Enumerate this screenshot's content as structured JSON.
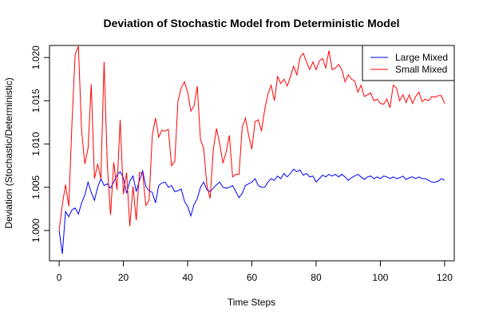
{
  "chart_data": {
    "type": "line",
    "title": "Deviation of Stochastic Model from Deterministic Model",
    "xlabel": "Time Steps",
    "ylabel": "Deviation (Stochastic/Deterministic)",
    "xlim": [
      -3,
      123
    ],
    "ylim": [
      0.9965,
      1.0214
    ],
    "x_ticks": [
      0,
      20,
      40,
      60,
      80,
      100,
      120
    ],
    "x_tick_labels": [
      "0",
      "20",
      "40",
      "60",
      "80",
      "100",
      "120"
    ],
    "y_ticks": [
      1.0,
      1.005,
      1.01,
      1.015,
      1.02
    ],
    "y_tick_labels": [
      "1.000",
      "1.005",
      "1.010",
      "1.015",
      "1.020"
    ],
    "grid": false,
    "legend_position": "top-right",
    "series": [
      {
        "name": "Large Mixed",
        "color": "#0000ff",
        "x": [
          0,
          1,
          2,
          3,
          4,
          5,
          6,
          7,
          8,
          9,
          10,
          11,
          12,
          13,
          14,
          15,
          16,
          17,
          18,
          19,
          20,
          21,
          22,
          23,
          24,
          25,
          26,
          27,
          28,
          29,
          30,
          31,
          32,
          33,
          34,
          35,
          36,
          37,
          38,
          39,
          40,
          41,
          42,
          43,
          44,
          45,
          46,
          47,
          48,
          49,
          50,
          51,
          52,
          53,
          54,
          55,
          56,
          57,
          58,
          59,
          60,
          61,
          62,
          63,
          64,
          65,
          66,
          67,
          68,
          69,
          70,
          71,
          72,
          73,
          74,
          75,
          76,
          77,
          78,
          79,
          80,
          81,
          82,
          83,
          84,
          85,
          86,
          87,
          88,
          89,
          90,
          91,
          92,
          93,
          94,
          95,
          96,
          97,
          98,
          99,
          100,
          101,
          102,
          103,
          104,
          105,
          106,
          107,
          108,
          109,
          110,
          111,
          112,
          113,
          114,
          115,
          116,
          117,
          118,
          119,
          120
        ],
        "values": [
          1.0,
          0.9973,
          1.0022,
          1.0016,
          1.0024,
          1.0026,
          1.0019,
          1.0032,
          1.0041,
          1.0056,
          1.0044,
          1.0035,
          1.005,
          1.006,
          1.0052,
          1.0054,
          1.0049,
          1.0056,
          1.0064,
          1.0068,
          1.0061,
          1.0043,
          1.0057,
          1.0063,
          1.0045,
          1.0058,
          1.0069,
          1.0051,
          1.0046,
          1.0044,
          1.0032,
          1.0052,
          1.0055,
          1.0056,
          1.005,
          1.0052,
          1.0045,
          1.0046,
          1.0048,
          1.0034,
          1.0028,
          1.0017,
          1.003,
          1.0037,
          1.005,
          1.0056,
          1.0047,
          1.0045,
          1.0049,
          1.0053,
          1.0056,
          1.005,
          1.0049,
          1.005,
          1.0052,
          1.0045,
          1.0038,
          1.0043,
          1.0052,
          1.0054,
          1.0056,
          1.006,
          1.0052,
          1.005,
          1.005,
          1.0056,
          1.006,
          1.0058,
          1.0063,
          1.006,
          1.0066,
          1.0062,
          1.0066,
          1.0071,
          1.0068,
          1.007,
          1.0064,
          1.0066,
          1.0062,
          1.0063,
          1.0056,
          1.006,
          1.0064,
          1.0062,
          1.0065,
          1.0063,
          1.0065,
          1.0062,
          1.0065,
          1.0062,
          1.0058,
          1.0061,
          1.0063,
          1.0065,
          1.0062,
          1.0059,
          1.0062,
          1.0063,
          1.006,
          1.0062,
          1.006,
          1.0063,
          1.0062,
          1.006,
          1.0062,
          1.006,
          1.0061,
          1.0063,
          1.0059,
          1.0061,
          1.0062,
          1.006,
          1.0062,
          1.006,
          1.006,
          1.0058,
          1.0056,
          1.0056,
          1.0057,
          1.006,
          1.0058
        ]
      },
      {
        "name": "Small Mixed",
        "color": "#ff0000",
        "x": [
          0,
          1,
          2,
          3,
          4,
          5,
          6,
          7,
          8,
          9,
          10,
          11,
          12,
          13,
          14,
          15,
          16,
          17,
          18,
          19,
          20,
          21,
          22,
          23,
          24,
          25,
          26,
          27,
          28,
          29,
          30,
          31,
          32,
          33,
          34,
          35,
          36,
          37,
          38,
          39,
          40,
          41,
          42,
          43,
          44,
          45,
          46,
          47,
          48,
          49,
          50,
          51,
          52,
          53,
          54,
          55,
          56,
          57,
          58,
          59,
          60,
          61,
          62,
          63,
          64,
          65,
          66,
          67,
          68,
          69,
          70,
          71,
          72,
          73,
          74,
          75,
          76,
          77,
          78,
          79,
          80,
          81,
          82,
          83,
          84,
          85,
          86,
          87,
          88,
          89,
          90,
          91,
          92,
          93,
          94,
          95,
          96,
          97,
          98,
          99,
          100,
          101,
          102,
          103,
          104,
          105,
          106,
          107,
          108,
          109,
          110,
          111,
          112,
          113,
          114,
          115,
          116,
          117,
          118,
          119,
          120
        ],
        "values": [
          1.0,
          1.003,
          1.0053,
          1.0028,
          1.0125,
          1.0204,
          1.0213,
          1.0115,
          1.0077,
          1.0095,
          1.0169,
          1.006,
          1.0077,
          1.006,
          1.0195,
          1.0076,
          1.0018,
          1.0079,
          1.0047,
          1.0128,
          1.0042,
          1.0067,
          1.0005,
          1.0051,
          1.0012,
          1.0067,
          1.0066,
          1.0029,
          1.0035,
          1.011,
          1.013,
          1.0108,
          1.0116,
          1.0115,
          1.0117,
          1.0075,
          1.008,
          1.015,
          1.0165,
          1.0172,
          1.016,
          1.0138,
          1.0144,
          1.0167,
          1.0105,
          1.0095,
          1.0052,
          1.0037,
          1.0094,
          1.0118,
          1.01,
          1.0078,
          1.0091,
          1.011,
          1.0062,
          1.0065,
          1.0065,
          1.012,
          1.013,
          1.011,
          1.0094,
          1.0126,
          1.0128,
          1.0115,
          1.014,
          1.0158,
          1.0168,
          1.015,
          1.0178,
          1.017,
          1.0175,
          1.0167,
          1.0178,
          1.019,
          1.018,
          1.02,
          1.0205,
          1.0195,
          1.0186,
          1.0195,
          1.0186,
          1.0196,
          1.0199,
          1.0188,
          1.0208,
          1.0186,
          1.0188,
          1.0192,
          1.0186,
          1.0172,
          1.018,
          1.0175,
          1.0173,
          1.016,
          1.0168,
          1.0155,
          1.0157,
          1.0159,
          1.015,
          1.0152,
          1.0147,
          1.0146,
          1.0152,
          1.0142,
          1.0168,
          1.0165,
          1.015,
          1.0157,
          1.0148,
          1.0157,
          1.0147,
          1.0155,
          1.016,
          1.0149,
          1.0152,
          1.015,
          1.0155,
          1.0154,
          1.0156,
          1.0156,
          1.0147
        ]
      }
    ]
  }
}
